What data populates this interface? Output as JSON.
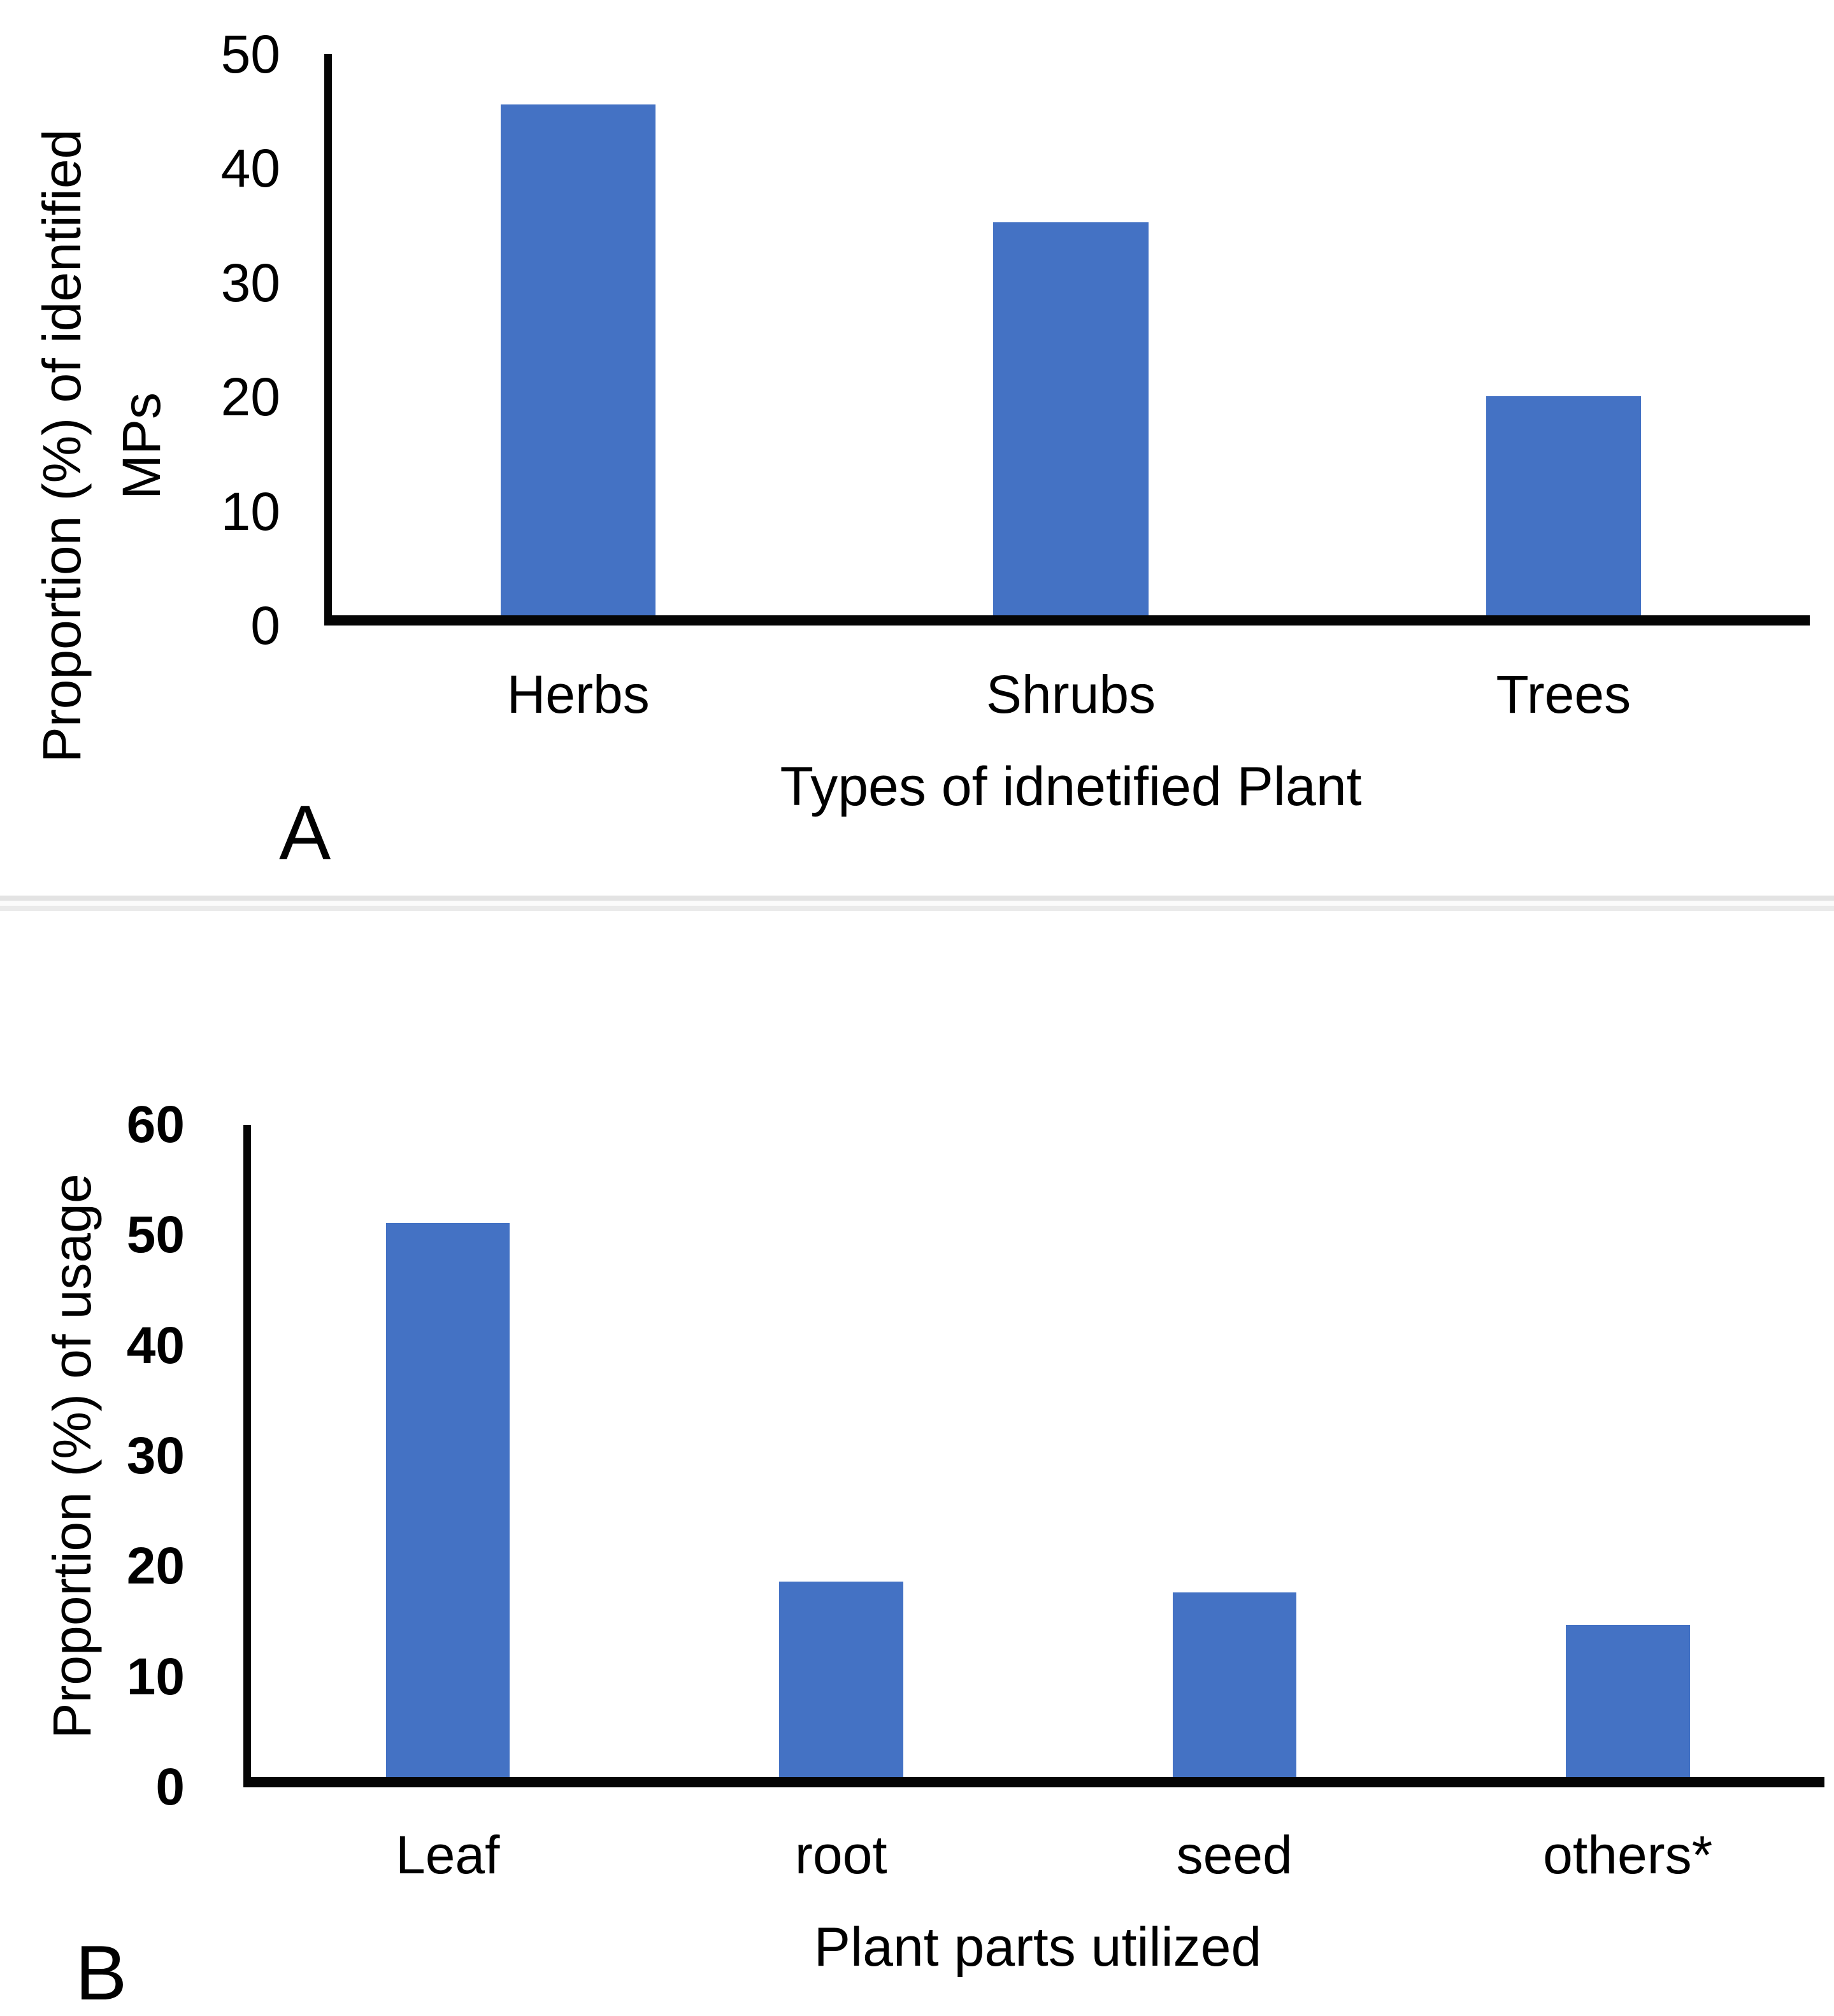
{
  "figure": {
    "panel_count": 2,
    "background": "#ffffff",
    "axis_color": "#050505",
    "bar_color": "#4472C4"
  },
  "chart_data": [
    {
      "type": "bar",
      "panel_label": "A",
      "title": "",
      "categories": [
        "Herbs",
        "Shrubs",
        "Trees"
      ],
      "values": [
        45.5,
        35,
        19.5
      ],
      "bar_color": "#4472C4",
      "xlabel": "Types of idnetified Plant",
      "ylabel_lines": [
        "Proportion (%) of identified",
        "MPs"
      ],
      "ylim": [
        0,
        50
      ],
      "yticks": [
        0,
        10,
        20,
        30,
        40,
        50
      ],
      "grid": false,
      "legend": null
    },
    {
      "type": "bar",
      "panel_label": "B",
      "title": "",
      "categories": [
        "Leaf",
        "root",
        "seed",
        "others*"
      ],
      "values": [
        51,
        18,
        17,
        14
      ],
      "bar_color": "#4472C4",
      "xlabel": "Plant parts utilized",
      "ylabel_lines": [
        "Proportion (%) of usage"
      ],
      "ylim": [
        0,
        60
      ],
      "yticks": [
        0,
        10,
        20,
        30,
        40,
        50,
        60
      ],
      "grid": false,
      "legend": null
    }
  ]
}
